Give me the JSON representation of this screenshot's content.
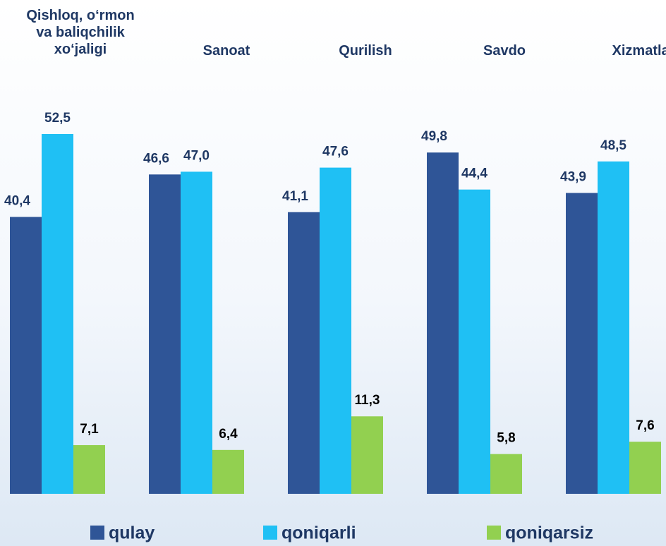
{
  "chart_data": {
    "type": "bar",
    "categories": [
      "Qishloq, o‘rmon va baliqchilik xo‘jaligi",
      "Sanoat",
      "Qurilish",
      "Savdo",
      "Xizmatlar"
    ],
    "series": [
      {
        "name": "qulay",
        "color": "#2f5597",
        "values": [
          40.4,
          46.6,
          41.1,
          49.8,
          43.9
        ],
        "value_labels": [
          "40,4",
          "46,6",
          "41,1",
          "49,8",
          "43,9"
        ]
      },
      {
        "name": "qoniqarli",
        "color": "#1fc0f4",
        "values": [
          52.5,
          47.0,
          47.6,
          44.4,
          48.5
        ],
        "value_labels": [
          "52,5",
          "47,0",
          "47,6",
          "44,4",
          "48,5"
        ]
      },
      {
        "name": "qoniqarsiz",
        "color": "#92d050",
        "values": [
          7.1,
          6.4,
          11.3,
          5.8,
          7.6
        ],
        "value_labels": [
          "7,1",
          "6,4",
          "11,3",
          "5,8",
          "7,6"
        ]
      }
    ]
  }
}
